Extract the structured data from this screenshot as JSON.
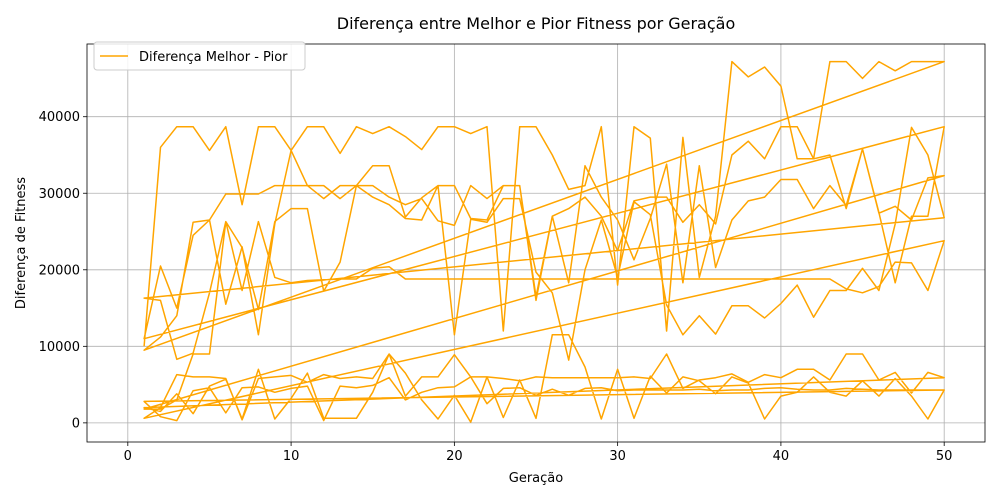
{
  "chart_data": {
    "type": "line",
    "title": "Diferença entre Melhor e Pior Fitness por Geração",
    "xlabel": "Geração",
    "ylabel": "Diferença de Fitness",
    "xlim": [
      -2.5,
      52.5
    ],
    "ylim": [
      -2500,
      49500
    ],
    "xticks": [
      0,
      10,
      20,
      30,
      40,
      50
    ],
    "yticks": [
      0,
      10000,
      20000,
      30000,
      40000
    ],
    "grid": true,
    "legend_position": "top-left",
    "color": "#FFA500",
    "series": [
      {
        "name": "Diferença Melhor - Pior",
        "x": [
          1,
          2,
          3,
          4,
          5,
          6,
          7,
          8,
          9,
          10,
          11,
          12,
          13,
          14,
          15,
          16,
          17,
          18,
          19,
          20,
          21,
          22,
          23,
          24,
          25,
          26,
          27,
          28,
          29,
          30,
          31,
          32,
          33,
          34,
          35,
          36,
          37,
          38,
          39,
          40,
          41,
          42,
          43,
          44,
          45,
          46,
          47,
          48,
          49,
          50,
          1,
          2,
          3,
          4,
          5,
          6,
          7,
          8,
          9,
          10,
          11,
          12,
          13,
          14,
          15,
          16,
          17,
          18,
          19,
          20,
          21,
          22,
          23,
          24,
          25,
          26,
          27,
          28,
          29,
          30,
          31,
          32,
          33,
          34,
          35,
          36,
          37,
          38,
          39,
          40,
          41,
          42,
          43,
          44,
          45,
          46,
          47,
          48,
          49,
          50,
          1,
          2,
          3,
          4,
          5,
          6,
          7,
          8,
          9,
          10,
          11,
          12,
          13,
          14,
          15,
          16,
          17,
          18,
          19,
          20,
          21,
          22,
          23,
          24,
          25,
          26,
          27,
          28,
          29,
          30,
          31,
          32,
          33,
          34,
          35,
          36,
          37,
          38,
          39,
          40,
          41,
          42,
          43,
          44,
          45,
          46,
          47,
          48,
          49,
          50,
          1,
          2,
          3,
          4,
          5,
          6,
          7,
          8,
          9,
          10,
          11,
          12,
          13,
          14,
          15,
          16,
          17,
          18,
          19,
          20,
          21,
          22,
          23,
          24,
          25,
          26,
          27,
          28,
          29,
          30,
          31,
          32,
          33,
          34,
          35,
          36,
          37,
          38,
          39,
          40,
          41,
          42,
          43,
          44,
          45,
          46,
          47,
          48,
          49,
          50,
          1,
          2,
          3,
          4,
          5,
          6,
          7,
          8,
          9,
          10,
          11,
          12,
          13,
          14,
          15,
          16,
          17,
          18,
          19,
          20,
          21,
          22,
          23,
          24,
          25,
          26,
          27,
          28,
          29,
          30,
          31,
          32,
          33,
          34,
          35,
          36,
          37,
          38,
          39,
          40,
          41,
          42,
          43,
          44,
          45,
          46,
          47,
          48,
          49,
          50,
          1,
          2,
          3,
          4,
          5,
          6,
          7,
          8,
          9,
          10,
          11,
          12,
          13,
          14,
          15,
          16,
          17,
          18,
          19,
          20,
          21,
          22,
          23,
          24,
          25,
          26,
          27,
          28,
          29,
          30,
          31,
          32,
          33,
          34,
          35,
          36,
          37,
          38,
          39,
          40,
          41,
          42,
          43,
          44,
          45,
          46,
          47,
          48,
          49,
          50,
          1,
          2,
          3,
          4,
          5,
          6,
          7,
          8,
          9,
          10,
          11,
          12,
          13,
          14,
          15,
          16,
          17,
          18,
          19,
          20,
          21,
          22,
          23,
          24,
          25,
          26,
          27,
          28,
          29,
          30,
          31,
          32,
          33,
          34,
          35,
          36,
          37,
          38,
          39,
          40,
          41,
          42,
          43,
          44,
          45,
          46,
          47,
          48,
          49,
          50,
          1,
          2,
          3,
          4,
          5,
          6,
          7,
          8,
          9,
          10,
          11,
          12,
          13,
          14,
          15,
          16,
          17,
          18,
          19,
          20,
          21,
          22,
          23,
          24,
          25,
          26,
          27,
          28,
          29,
          30,
          31,
          32,
          33,
          34,
          35,
          36,
          37,
          38,
          39,
          40,
          41,
          42,
          43,
          44,
          45,
          46,
          47,
          48,
          49,
          50
        ],
        "y": [
          10000,
          36000,
          38700,
          38700,
          35600,
          38700,
          28500,
          38700,
          38700,
          35600,
          38700,
          38700,
          35200,
          38700,
          37800,
          38700,
          37400,
          35700,
          38700,
          38700,
          37800,
          38700,
          12000,
          38700,
          38700,
          35000,
          30500,
          31000,
          38700,
          18000,
          38700,
          37200,
          12000,
          37300,
          19000,
          27000,
          47200,
          45200,
          46500,
          44000,
          34500,
          34500,
          47200,
          47200,
          45000,
          47200,
          46000,
          47200,
          47200,
          47200,
          9500,
          11200,
          14000,
          26200,
          26500,
          15500,
          23000,
          11500,
          26000,
          35600,
          31000,
          31000,
          29300,
          31000,
          31000,
          29500,
          28500,
          29300,
          26400,
          25800,
          31000,
          29300,
          31000,
          31000,
          16500,
          27000,
          28000,
          29500,
          27000,
          22500,
          29000,
          29500,
          29500,
          26200,
          28500,
          26000,
          35000,
          36800,
          34500,
          38700,
          38700,
          34500,
          35000,
          28000,
          35800,
          27500,
          18300,
          27000,
          27000,
          38700,
          11000,
          20500,
          15000,
          24500,
          26500,
          29900,
          29900,
          29900,
          31000,
          31000,
          31000,
          29300,
          31000,
          31000,
          29500,
          28500,
          26700,
          26500,
          31000,
          31000,
          26700,
          26500,
          31000,
          31000,
          16000,
          27000,
          18300,
          33600,
          29500,
          26500,
          21300,
          26700,
          33800,
          18300,
          33600,
          20300,
          26500,
          29000,
          29500,
          31800,
          31800,
          28000,
          31000,
          28400,
          35800,
          27400,
          28300,
          26500,
          32000,
          32300,
          1800,
          1800,
          3000,
          9000,
          9000,
          26300,
          22900,
          14800,
          26300,
          28000,
          28000,
          17200,
          21000,
          31000,
          33600,
          33600,
          26900,
          29400,
          31000,
          11500,
          26600,
          26200,
          29300,
          29300,
          19700,
          17000,
          8200,
          20000,
          26500,
          19000,
          28900,
          27200,
          15400,
          11500,
          14000,
          11600,
          15300,
          15300,
          13700,
          15600,
          18000,
          13800,
          17300,
          17300,
          20200,
          17300,
          26000,
          38600,
          35000,
          26800,
          16300,
          16000,
          8300,
          9100,
          17000,
          26300,
          17300,
          26300,
          19000,
          18300,
          18600,
          18700,
          18800,
          18800,
          20200,
          20400,
          18800,
          18800,
          18800,
          18800,
          18800,
          18800,
          18800,
          18800,
          18800,
          18800,
          18800,
          18800,
          18800,
          18800,
          18800,
          18800,
          18800,
          18800,
          18800,
          18800,
          18800,
          18800,
          18800,
          18800,
          18800,
          18800,
          18800,
          17500,
          17000,
          17800,
          21000,
          20900,
          17300,
          23800,
          600,
          2000,
          6300,
          6000,
          6000,
          5800,
          400,
          5800,
          6000,
          6200,
          5300,
          6300,
          5800,
          6000,
          5800,
          9000,
          3500,
          6000,
          6000,
          8900,
          6000,
          6000,
          5800,
          5500,
          6000,
          5900,
          5900,
          5900,
          5900,
          5900,
          6000,
          5800,
          9000,
          4500,
          5600,
          5900,
          6400,
          5300,
          6300,
          5900,
          7000,
          7000,
          5600,
          9000,
          9000,
          5600,
          6600,
          3900,
          6600,
          5900,
          2000,
          1500,
          3800,
          1200,
          4800,
          5700,
          500,
          7000,
          500,
          3200,
          6500,
          600,
          600,
          600,
          4000,
          9000,
          6500,
          3000,
          500,
          3600,
          100,
          6000,
          700,
          5600,
          600,
          11500,
          11500,
          7300,
          500,
          7000,
          600,
          6100,
          3900,
          6000,
          5500,
          3800,
          6000,
          5200,
          500,
          3500,
          4000,
          6000,
          4000,
          3500,
          5500,
          3500,
          5800,
          3500,
          500,
          4300,
          2800,
          800,
          300,
          4200,
          4600,
          1300,
          4600,
          4700,
          4000,
          4500,
          4800,
          300,
          4800,
          4600,
          4900,
          5900,
          3000,
          4000,
          4600,
          4700,
          6000,
          2500,
          4500,
          4600,
          3600,
          4400,
          3600,
          4500,
          4600,
          4200,
          4300,
          4300,
          4300,
          4300,
          4400,
          4200,
          4300,
          4300,
          4500,
          4600,
          4400,
          4300,
          4300,
          4500,
          4400,
          4300,
          4300,
          4300,
          4300,
          4300
        ]
      }
    ]
  }
}
